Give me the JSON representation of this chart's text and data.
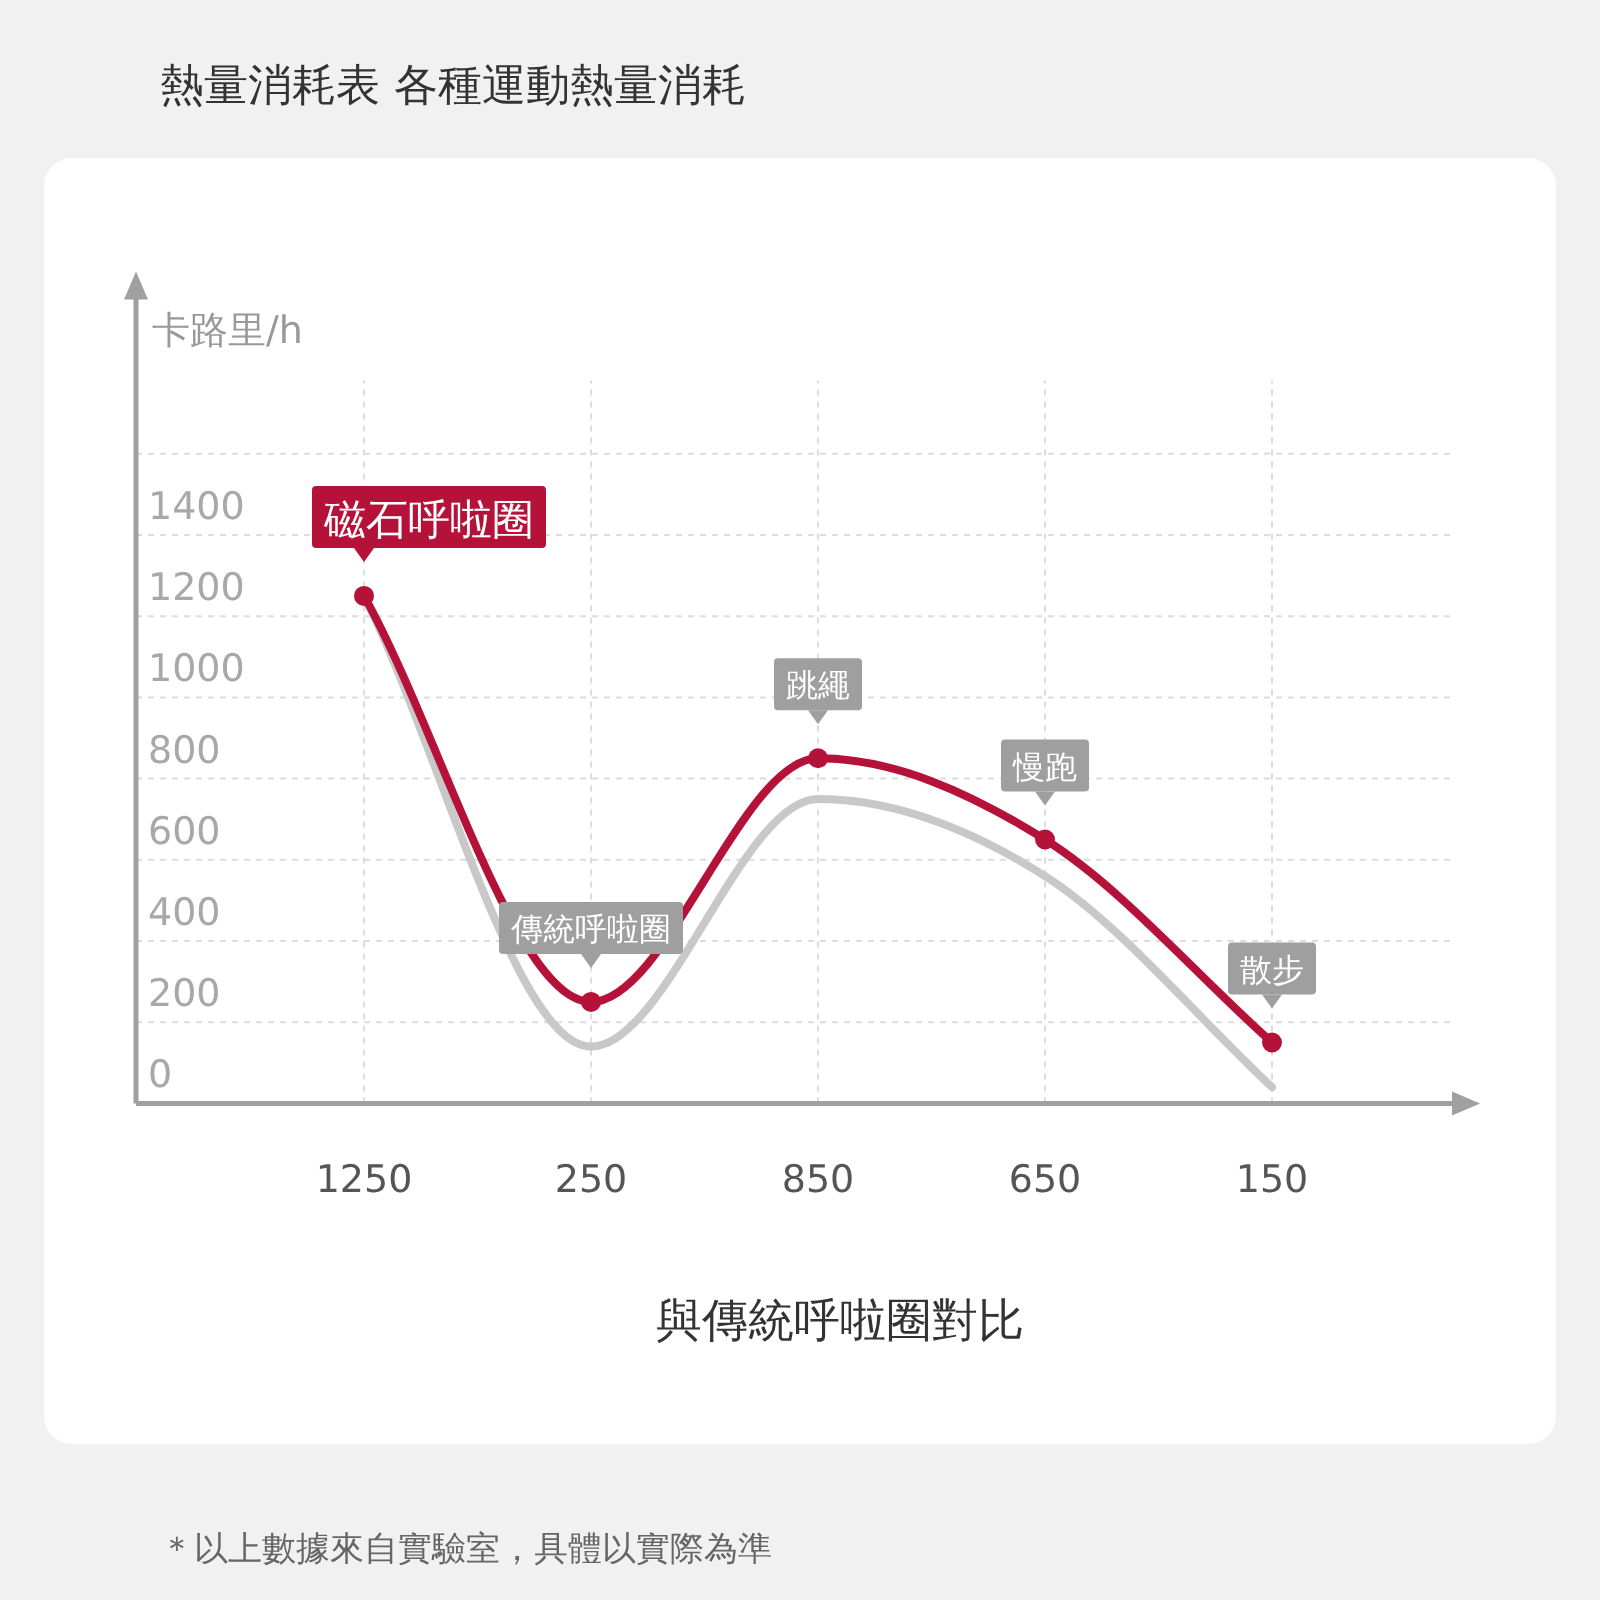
{
  "chart_data": {
    "type": "line",
    "title": "熱量消耗表 各種運動熱量消耗",
    "ylabel": "卡路里/h",
    "xlabel": "與傳統呼啦圈對比",
    "categories": [
      "1250",
      "250",
      "850",
      "650",
      "150"
    ],
    "series": [
      {
        "color": "#c8c8c8",
        "values": [
          1250,
          140,
          750,
          560,
          40
        ],
        "marker": "none"
      },
      {
        "color": "#b5123a",
        "values": [
          1250,
          250,
          850,
          650,
          150
        ],
        "marker": "circle"
      }
    ],
    "ylim": [
      0,
      2000
    ],
    "yticks": [
      0,
      200,
      400,
      600,
      800,
      1000,
      1200,
      1400,
      {
        "value": 1600,
        "label": null
      }
    ],
    "grid": true,
    "annotations": [
      {
        "text": "磁石呼啦圈",
        "x": "1250",
        "y": 1250
      },
      {
        "text": "傳統呼啦圈",
        "x": "250",
        "y": 250
      },
      {
        "text": "跳繩",
        "x": "850",
        "y": 850
      },
      {
        "text": "慢跑",
        "x": "650",
        "y": 650
      },
      {
        "text": "散步",
        "x": "150",
        "y": 150
      },
      "＊以上數據來自實驗室，具體以實際為準"
    ]
  }
}
